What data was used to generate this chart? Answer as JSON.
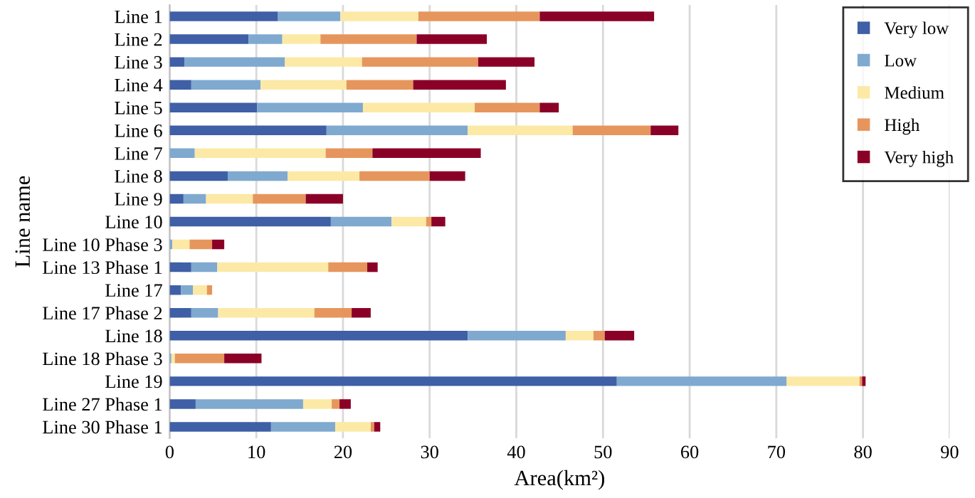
{
  "chart_data": {
    "type": "bar",
    "orientation": "horizontal",
    "stacked": true,
    "xlabel": "Area(km²)",
    "ylabel": "Line name",
    "categories": [
      "Line 1",
      "Line 2",
      "Line 3",
      "Line 4",
      "Line 5",
      "Line 6",
      "Line 7",
      "Line 8",
      "Line 9",
      "Line 10",
      "Line 10 Phase 3",
      "Line 13 Phase 1",
      "Line 17",
      "Line 17 Phase 2",
      "Line 18",
      "Line 18 Phase 3",
      "Line 19",
      "Line 27 Phase 1",
      "Line 30 Phase 1"
    ],
    "series": [
      {
        "name": "Very low",
        "color": "#3f5fa6",
        "values": [
          12.5,
          9.1,
          1.7,
          2.5,
          10.1,
          18.1,
          0,
          6.7,
          1.6,
          18.6,
          0,
          2.5,
          1.3,
          2.5,
          34.4,
          0,
          51.6,
          3.0,
          11.7
        ]
      },
      {
        "name": "Low",
        "color": "#7fa9cf",
        "values": [
          7.2,
          3.9,
          11.6,
          8.0,
          12.2,
          16.3,
          2.9,
          6.9,
          2.6,
          7.0,
          0.3,
          3.0,
          1.4,
          3.1,
          11.3,
          0.2,
          19.6,
          12.4,
          7.4
        ]
      },
      {
        "name": "Medium",
        "color": "#fce9a6",
        "values": [
          9.0,
          4.4,
          8.9,
          9.9,
          12.9,
          12.1,
          15.1,
          8.3,
          5.4,
          4.0,
          2.0,
          12.8,
          1.6,
          11.1,
          3.2,
          0.4,
          8.4,
          3.3,
          4.1
        ]
      },
      {
        "name": "High",
        "color": "#e6965c",
        "values": [
          14.0,
          11.1,
          13.4,
          7.7,
          7.5,
          9.0,
          5.4,
          8.1,
          6.1,
          0.6,
          2.6,
          4.5,
          0.6,
          4.3,
          1.3,
          5.7,
          0.3,
          0.9,
          0.4
        ]
      },
      {
        "name": "Very high",
        "color": "#8b0027",
        "values": [
          13.2,
          8.1,
          6.5,
          10.7,
          2.2,
          3.2,
          12.5,
          4.1,
          4.3,
          1.6,
          1.4,
          1.2,
          0,
          2.2,
          3.4,
          4.3,
          0.4,
          1.3,
          0.7
        ]
      }
    ],
    "xlim": [
      0,
      90
    ],
    "xticks": [
      0,
      10,
      20,
      30,
      40,
      50,
      60,
      70,
      80,
      90
    ],
    "grid": "x",
    "legend": "top right"
  }
}
